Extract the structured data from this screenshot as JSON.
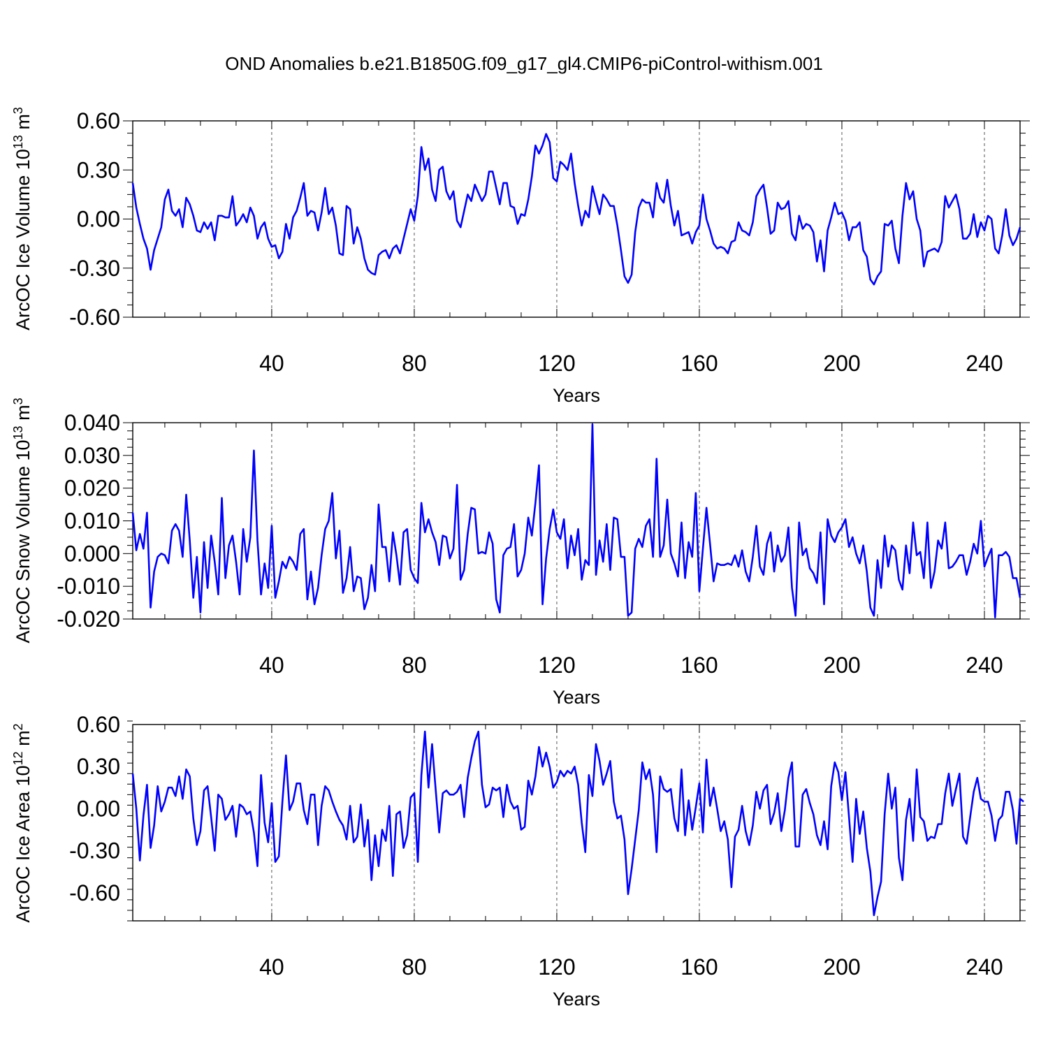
{
  "title": "OND Anomalies b.e21.B1850G.f09_g17_gl4.CMIP6-piControl-withism.001",
  "chart_data": [
    {
      "type": "line",
      "panel": "ice-volume",
      "title": "OND Anomalies b.e21.B1850G.f09_g17_gl4.CMIP6-piControl-withism.001",
      "xlabel": "Years",
      "ylabel_main": "ArcOC Ice Volume 10",
      "ylabel_exp": "13",
      "ylabel_unit": " m",
      "ylabel_unit_exp": "3",
      "xlim": [
        1,
        250
      ],
      "ylim": [
        -0.6,
        0.6
      ],
      "yticks": [
        -0.6,
        -0.3,
        0.0,
        0.3,
        0.6
      ],
      "ytick_labels": [
        "-0.60",
        "-0.30",
        "0.00",
        "0.30",
        "0.60"
      ],
      "xticks": [
        40,
        80,
        120,
        160,
        200,
        240
      ],
      "xtick_labels": [
        "40",
        "80",
        "120",
        "160",
        "200",
        "240"
      ],
      "series_color": "#0000ff",
      "x_start": 1,
      "values": [
        0.22,
        0.07,
        -0.03,
        -0.12,
        -0.18,
        -0.31,
        -0.19,
        -0.12,
        -0.05,
        0.12,
        0.18,
        0.05,
        0.02,
        0.06,
        -0.05,
        0.13,
        0.09,
        0.02,
        -0.07,
        -0.08,
        -0.02,
        -0.06,
        -0.02,
        -0.13,
        0.02,
        0.02,
        0.01,
        0.01,
        0.14,
        -0.04,
        -0.01,
        0.03,
        -0.02,
        0.07,
        0.02,
        -0.12,
        -0.05,
        -0.02,
        -0.12,
        -0.17,
        -0.16,
        -0.24,
        -0.2,
        -0.03,
        -0.12,
        0.01,
        0.05,
        0.13,
        0.22,
        0.02,
        0.05,
        0.04,
        -0.07,
        0.04,
        0.19,
        0.03,
        0.07,
        -0.04,
        -0.21,
        -0.22,
        0.08,
        0.06,
        -0.15,
        -0.05,
        -0.12,
        -0.24,
        -0.31,
        -0.33,
        -0.34,
        -0.22,
        -0.2,
        -0.19,
        -0.24,
        -0.18,
        -0.16,
        -0.21,
        -0.12,
        -0.03,
        0.06,
        -0.01,
        0.14,
        0.44,
        0.3,
        0.37,
        0.18,
        0.11,
        0.3,
        0.32,
        0.17,
        0.12,
        0.17,
        -0.01,
        -0.05,
        0.05,
        0.15,
        0.11,
        0.21,
        0.16,
        0.11,
        0.15,
        0.29,
        0.29,
        0.19,
        0.09,
        0.22,
        0.22,
        0.08,
        0.07,
        -0.03,
        0.03,
        0.02,
        0.12,
        0.26,
        0.45,
        0.4,
        0.45,
        0.52,
        0.47,
        0.25,
        0.23,
        0.35,
        0.33,
        0.3,
        0.4,
        0.22,
        0.08,
        -0.04,
        0.05,
        0.01,
        0.2,
        0.11,
        0.03,
        0.15,
        0.12,
        0.08,
        0.08,
        -0.04,
        -0.19,
        -0.35,
        -0.39,
        -0.34,
        -0.08,
        0.07,
        0.12,
        0.1,
        0.1,
        0.01,
        0.22,
        0.13,
        0.1,
        0.24,
        0.08,
        -0.04,
        0.05,
        -0.1,
        -0.09,
        -0.08,
        -0.15,
        -0.08,
        -0.04,
        0.15,
        0.0,
        -0.07,
        -0.15,
        -0.18,
        -0.17,
        -0.18,
        -0.21,
        -0.14,
        -0.13,
        -0.02,
        -0.07,
        -0.08,
        -0.1,
        -0.02,
        0.14,
        0.18,
        0.21,
        0.07,
        -0.09,
        -0.07,
        0.1,
        0.06,
        0.07,
        0.11,
        -0.09,
        -0.13,
        0.02,
        -0.06,
        -0.03,
        -0.04,
        -0.08,
        -0.26,
        -0.13,
        -0.32,
        -0.07,
        0.01,
        0.1,
        0.03,
        0.04,
        -0.01,
        -0.13,
        -0.05,
        -0.05,
        -0.02,
        -0.19,
        -0.23,
        -0.37,
        -0.4,
        -0.35,
        -0.32,
        -0.03,
        -0.04,
        -0.01,
        -0.18,
        -0.27,
        0.02,
        0.22,
        0.12,
        0.17,
        0.0,
        -0.07,
        -0.29,
        -0.2,
        -0.19,
        -0.18,
        -0.2,
        -0.14,
        0.14,
        0.07,
        0.11,
        0.15,
        0.06,
        -0.12,
        -0.12,
        -0.09,
        0.03,
        -0.11,
        -0.02,
        -0.07,
        0.02,
        0.0,
        -0.18,
        -0.21,
        -0.1,
        0.06,
        -0.1,
        -0.16,
        -0.12,
        -0.05
      ]
    },
    {
      "type": "line",
      "panel": "snow-volume",
      "xlabel": "Years",
      "ylabel_main": "ArcOC Snow Volume 10",
      "ylabel_exp": "13",
      "ylabel_unit": " m",
      "ylabel_unit_exp": "3",
      "xlim": [
        1,
        250
      ],
      "ylim": [
        -0.02,
        0.04
      ],
      "yticks": [
        -0.02,
        -0.01,
        0.0,
        0.01,
        0.02,
        0.03,
        0.04
      ],
      "ytick_labels": [
        "-0.020",
        "-0.010",
        "0.000",
        "0.010",
        "0.020",
        "0.030",
        "0.040"
      ],
      "xticks": [
        40,
        80,
        120,
        160,
        200,
        240
      ],
      "xtick_labels": [
        "40",
        "80",
        "120",
        "160",
        "200",
        "240"
      ],
      "series_color": "#0000ff",
      "x_start": 1,
      "values": [
        0.0125,
        0.001,
        0.006,
        0.0015,
        0.0125,
        -0.0165,
        -0.0055,
        -0.001,
        0.0,
        -0.0005,
        -0.003,
        0.007,
        0.009,
        0.007,
        -0.001,
        0.018,
        0.004,
        -0.0135,
        -0.001,
        -0.018,
        0.0035,
        -0.0105,
        0.0055,
        -0.0025,
        -0.0125,
        0.017,
        -0.0075,
        0.0025,
        0.0055,
        -0.0025,
        -0.0125,
        0.0075,
        -0.0025,
        0.005,
        0.0315,
        0.004,
        -0.0125,
        -0.003,
        -0.0105,
        0.0085,
        -0.0135,
        -0.0085,
        -0.0025,
        -0.0045,
        -0.001,
        -0.0025,
        -0.005,
        0.006,
        0.0075,
        -0.014,
        -0.0055,
        -0.0155,
        -0.0105,
        -0.0005,
        0.0075,
        0.01,
        0.0185,
        -0.0015,
        0.007,
        -0.012,
        -0.0075,
        0.002,
        -0.0115,
        -0.007,
        -0.0075,
        -0.017,
        -0.0135,
        -0.0035,
        -0.0115,
        0.015,
        0.002,
        0.002,
        -0.0085,
        0.0065,
        -0.0005,
        -0.0095,
        0.0065,
        0.0075,
        -0.005,
        -0.0075,
        -0.009,
        0.0155,
        0.0065,
        0.0105,
        0.0065,
        0.0035,
        -0.0035,
        0.0055,
        0.005,
        -0.0015,
        0.0015,
        0.021,
        -0.008,
        -0.005,
        0.006,
        0.014,
        0.0135,
        0.0,
        0.0005,
        0.0,
        0.0065,
        0.003,
        -0.014,
        -0.018,
        -0.0005,
        0.0015,
        0.002,
        0.009,
        -0.007,
        -0.005,
        0.0,
        0.011,
        0.0055,
        0.0155,
        0.027,
        -0.0155,
        -0.0015,
        0.0075,
        0.0135,
        0.0065,
        0.0045,
        0.0105,
        -0.0045,
        0.0055,
        -0.0005,
        0.0075,
        -0.008,
        -0.002,
        -0.0035,
        0.0395,
        -0.0065,
        0.004,
        -0.0025,
        0.009,
        -0.005,
        0.011,
        0.0105,
        -0.001,
        -0.001,
        -0.019,
        -0.018,
        0.0015,
        0.0045,
        0.002,
        0.0085,
        0.0105,
        -0.001,
        0.029,
        -0.001,
        0.0025,
        0.0165,
        0.0,
        -0.003,
        -0.007,
        0.0095,
        -0.0075,
        0.0035,
        -0.001,
        0.0185,
        -0.0115,
        0.0015,
        0.014,
        0.003,
        -0.0085,
        -0.003,
        -0.0035,
        -0.0035,
        -0.003,
        -0.0035,
        -0.0005,
        -0.004,
        0.001,
        -0.0055,
        -0.0085,
        -0.001,
        0.0085,
        -0.004,
        -0.0065,
        0.003,
        0.0065,
        -0.0055,
        0.0025,
        -0.0025,
        -0.0005,
        0.008,
        -0.0105,
        -0.019,
        0.0095,
        -0.0005,
        0.0015,
        -0.0045,
        -0.006,
        -0.009,
        0.0065,
        -0.0155,
        0.0105,
        0.0055,
        0.0035,
        0.0065,
        0.008,
        0.0105,
        0.002,
        0.005,
        0.0,
        -0.003,
        0.0025,
        -0.0055,
        -0.0165,
        -0.019,
        -0.002,
        -0.0105,
        0.0055,
        -0.004,
        0.0025,
        0.001,
        -0.008,
        -0.011,
        0.0025,
        -0.006,
        0.0095,
        -0.0005,
        0.0005,
        -0.0075,
        0.0095,
        -0.0105,
        -0.0055,
        0.004,
        0.0015,
        0.0095,
        -0.0045,
        -0.004,
        -0.0025,
        -0.0005,
        -0.0005,
        -0.0065,
        -0.0025,
        0.003,
        0.0,
        0.01,
        -0.004,
        -0.001,
        0.0015,
        -0.0195,
        -0.0005,
        -0.0005,
        0.0005,
        -0.001,
        -0.0075,
        -0.0075,
        -0.0135
      ]
    },
    {
      "type": "line",
      "panel": "ice-area",
      "xlabel": "Years",
      "ylabel_main": "ArcOC Ice Area 10",
      "ylabel_exp": "12",
      "ylabel_unit": " m",
      "ylabel_unit_exp": "2",
      "xlim": [
        1,
        250
      ],
      "ylim": [
        -0.8,
        0.6
      ],
      "yticks": [
        -0.6,
        -0.3,
        0.0,
        0.3,
        0.6
      ],
      "ytick_labels": [
        "-0.60",
        "-0.30",
        "0.00",
        "0.30",
        "0.60"
      ],
      "xticks": [
        40,
        80,
        120,
        160,
        200,
        240
      ],
      "xtick_labels": [
        "40",
        "80",
        "120",
        "160",
        "200",
        "240"
      ],
      "series_color": "#0000ff",
      "x_start": 1,
      "values": [
        0.25,
        0.0,
        -0.37,
        -0.05,
        0.17,
        -0.28,
        -0.12,
        0.16,
        -0.02,
        0.05,
        0.15,
        0.15,
        0.09,
        0.23,
        0.07,
        0.28,
        0.23,
        -0.07,
        -0.26,
        -0.16,
        0.13,
        0.16,
        -0.06,
        -0.3,
        0.1,
        0.07,
        -0.08,
        -0.04,
        0.02,
        -0.2,
        0.03,
        0.01,
        -0.04,
        -0.02,
        -0.17,
        -0.41,
        0.24,
        -0.1,
        -0.24,
        0.04,
        -0.38,
        -0.34,
        0.05,
        0.38,
        -0.01,
        0.05,
        0.18,
        0.18,
        -0.01,
        -0.11,
        0.1,
        0.1,
        -0.26,
        0.02,
        0.16,
        0.13,
        0.05,
        -0.02,
        -0.08,
        -0.12,
        -0.22,
        0.02,
        -0.24,
        -0.2,
        0.03,
        -0.27,
        -0.08,
        -0.51,
        -0.19,
        -0.41,
        -0.15,
        -0.23,
        0.02,
        -0.48,
        -0.04,
        -0.02,
        -0.28,
        -0.19,
        0.08,
        0.11,
        -0.38,
        0.24,
        0.55,
        0.15,
        0.46,
        0.14,
        -0.17,
        0.11,
        0.13,
        0.1,
        0.1,
        0.12,
        0.17,
        -0.06,
        0.22,
        0.36,
        0.48,
        0.55,
        0.17,
        0.01,
        0.03,
        0.15,
        0.13,
        0.15,
        -0.06,
        0.17,
        0.05,
        0.0,
        0.02,
        -0.15,
        -0.13,
        0.2,
        0.1,
        0.23,
        0.44,
        0.3,
        0.4,
        0.3,
        0.15,
        0.19,
        0.27,
        0.23,
        0.27,
        0.25,
        0.3,
        0.17,
        -0.1,
        -0.31,
        0.24,
        0.09,
        0.46,
        0.34,
        0.17,
        0.25,
        0.34,
        0.05,
        -0.07,
        -0.05,
        -0.22,
        -0.61,
        -0.43,
        -0.22,
        -0.01,
        0.33,
        0.21,
        0.28,
        0.1,
        -0.31,
        0.23,
        0.14,
        0.12,
        0.14,
        -0.07,
        -0.16,
        0.28,
        -0.19,
        0.06,
        -0.15,
        0.01,
        0.18,
        -0.17,
        0.35,
        0.02,
        0.15,
        0.0,
        -0.16,
        -0.09,
        -0.22,
        -0.56,
        -0.2,
        -0.15,
        0.02,
        -0.16,
        -0.26,
        -0.12,
        0.12,
        0.0,
        0.13,
        0.17,
        -0.11,
        -0.03,
        0.11,
        -0.16,
        -0.01,
        0.22,
        0.33,
        -0.27,
        -0.27,
        0.1,
        0.14,
        0.04,
        -0.04,
        -0.19,
        -0.26,
        -0.09,
        -0.29,
        0.16,
        0.33,
        0.26,
        0.06,
        0.26,
        -0.06,
        -0.38,
        0.07,
        -0.18,
        -0.02,
        -0.28,
        -0.45,
        -0.76,
        -0.63,
        -0.52,
        -0.04,
        0.25,
        0.0,
        0.15,
        -0.35,
        -0.51,
        -0.08,
        0.07,
        -0.23,
        0.28,
        -0.06,
        -0.09,
        -0.23,
        -0.2,
        -0.21,
        -0.11,
        -0.11,
        0.11,
        0.25,
        0.02,
        0.14,
        0.25,
        -0.2,
        -0.25,
        -0.06,
        0.12,
        0.22,
        0.07,
        0.05,
        0.05,
        -0.05,
        -0.23,
        -0.08,
        -0.05,
        0.12,
        0.12,
        -0.01,
        -0.25,
        0.07,
        0.05
      ]
    }
  ]
}
